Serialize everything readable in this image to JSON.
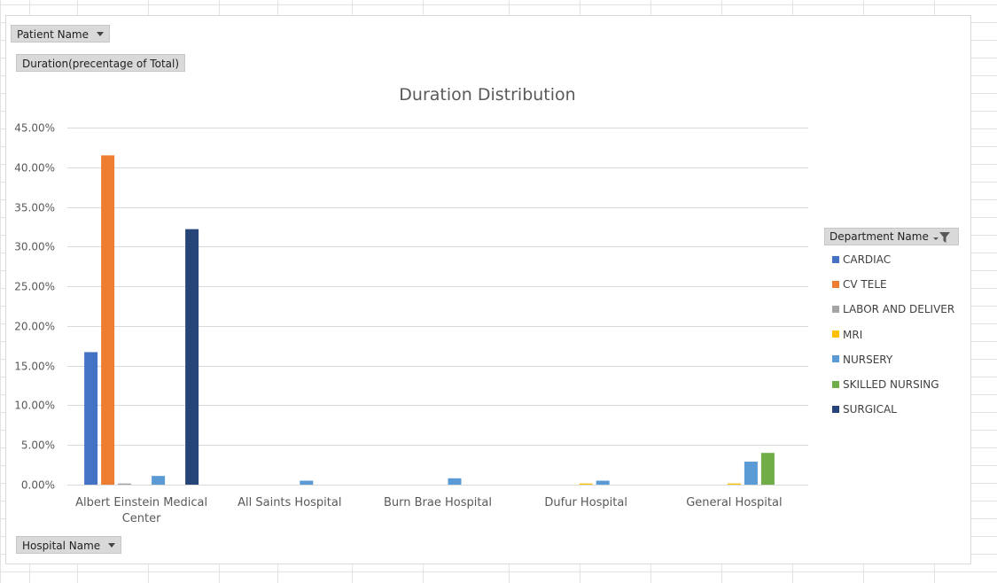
{
  "pivot_buttons": {
    "patient_name": "Patient Name",
    "value_field": "Duration(precentage of Total)",
    "hospital_name": "Hospital Name",
    "department_name": "Department Name"
  },
  "chart_data": {
    "type": "bar",
    "title": "Duration Distribution",
    "xlabel": "",
    "ylabel": "",
    "ylim": [
      0,
      0.45
    ],
    "y_tick_labels": [
      "0.00%",
      "5.00%",
      "10.00%",
      "15.00%",
      "20.00%",
      "25.00%",
      "30.00%",
      "35.00%",
      "40.00%",
      "45.00%"
    ],
    "grid": true,
    "legend_position": "right",
    "categories": [
      [
        "Albert Einstein Medical",
        "Center"
      ],
      [
        "All Saints Hospital"
      ],
      [
        "Burn Brae Hospital"
      ],
      [
        "Dufur Hospital"
      ],
      [
        "General Hospital"
      ]
    ],
    "series": [
      {
        "name": "CARDIAC",
        "color": "#4472c4",
        "values": [
          0.167,
          0,
          0,
          0,
          0
        ]
      },
      {
        "name": "CV TELE",
        "color": "#ed7d31",
        "values": [
          0.415,
          0,
          0,
          0,
          0
        ]
      },
      {
        "name": "LABOR AND DELIVER",
        "color": "#a5a5a5",
        "values": [
          0.0015,
          0,
          0,
          0,
          0
        ]
      },
      {
        "name": "MRI",
        "color": "#ffc000",
        "values": [
          0,
          0,
          0,
          0.0015,
          0.0015
        ]
      },
      {
        "name": "NURSERY",
        "color": "#5b9bd5",
        "values": [
          0.011,
          0.005,
          0.008,
          0.005,
          0.029
        ]
      },
      {
        "name": "SKILLED NURSING",
        "color": "#70ad47",
        "values": [
          0,
          0,
          0,
          0,
          0.04
        ]
      },
      {
        "name": "SURGICAL",
        "color": "#264478",
        "values": [
          0.322,
          0,
          0,
          0,
          0
        ]
      }
    ]
  }
}
